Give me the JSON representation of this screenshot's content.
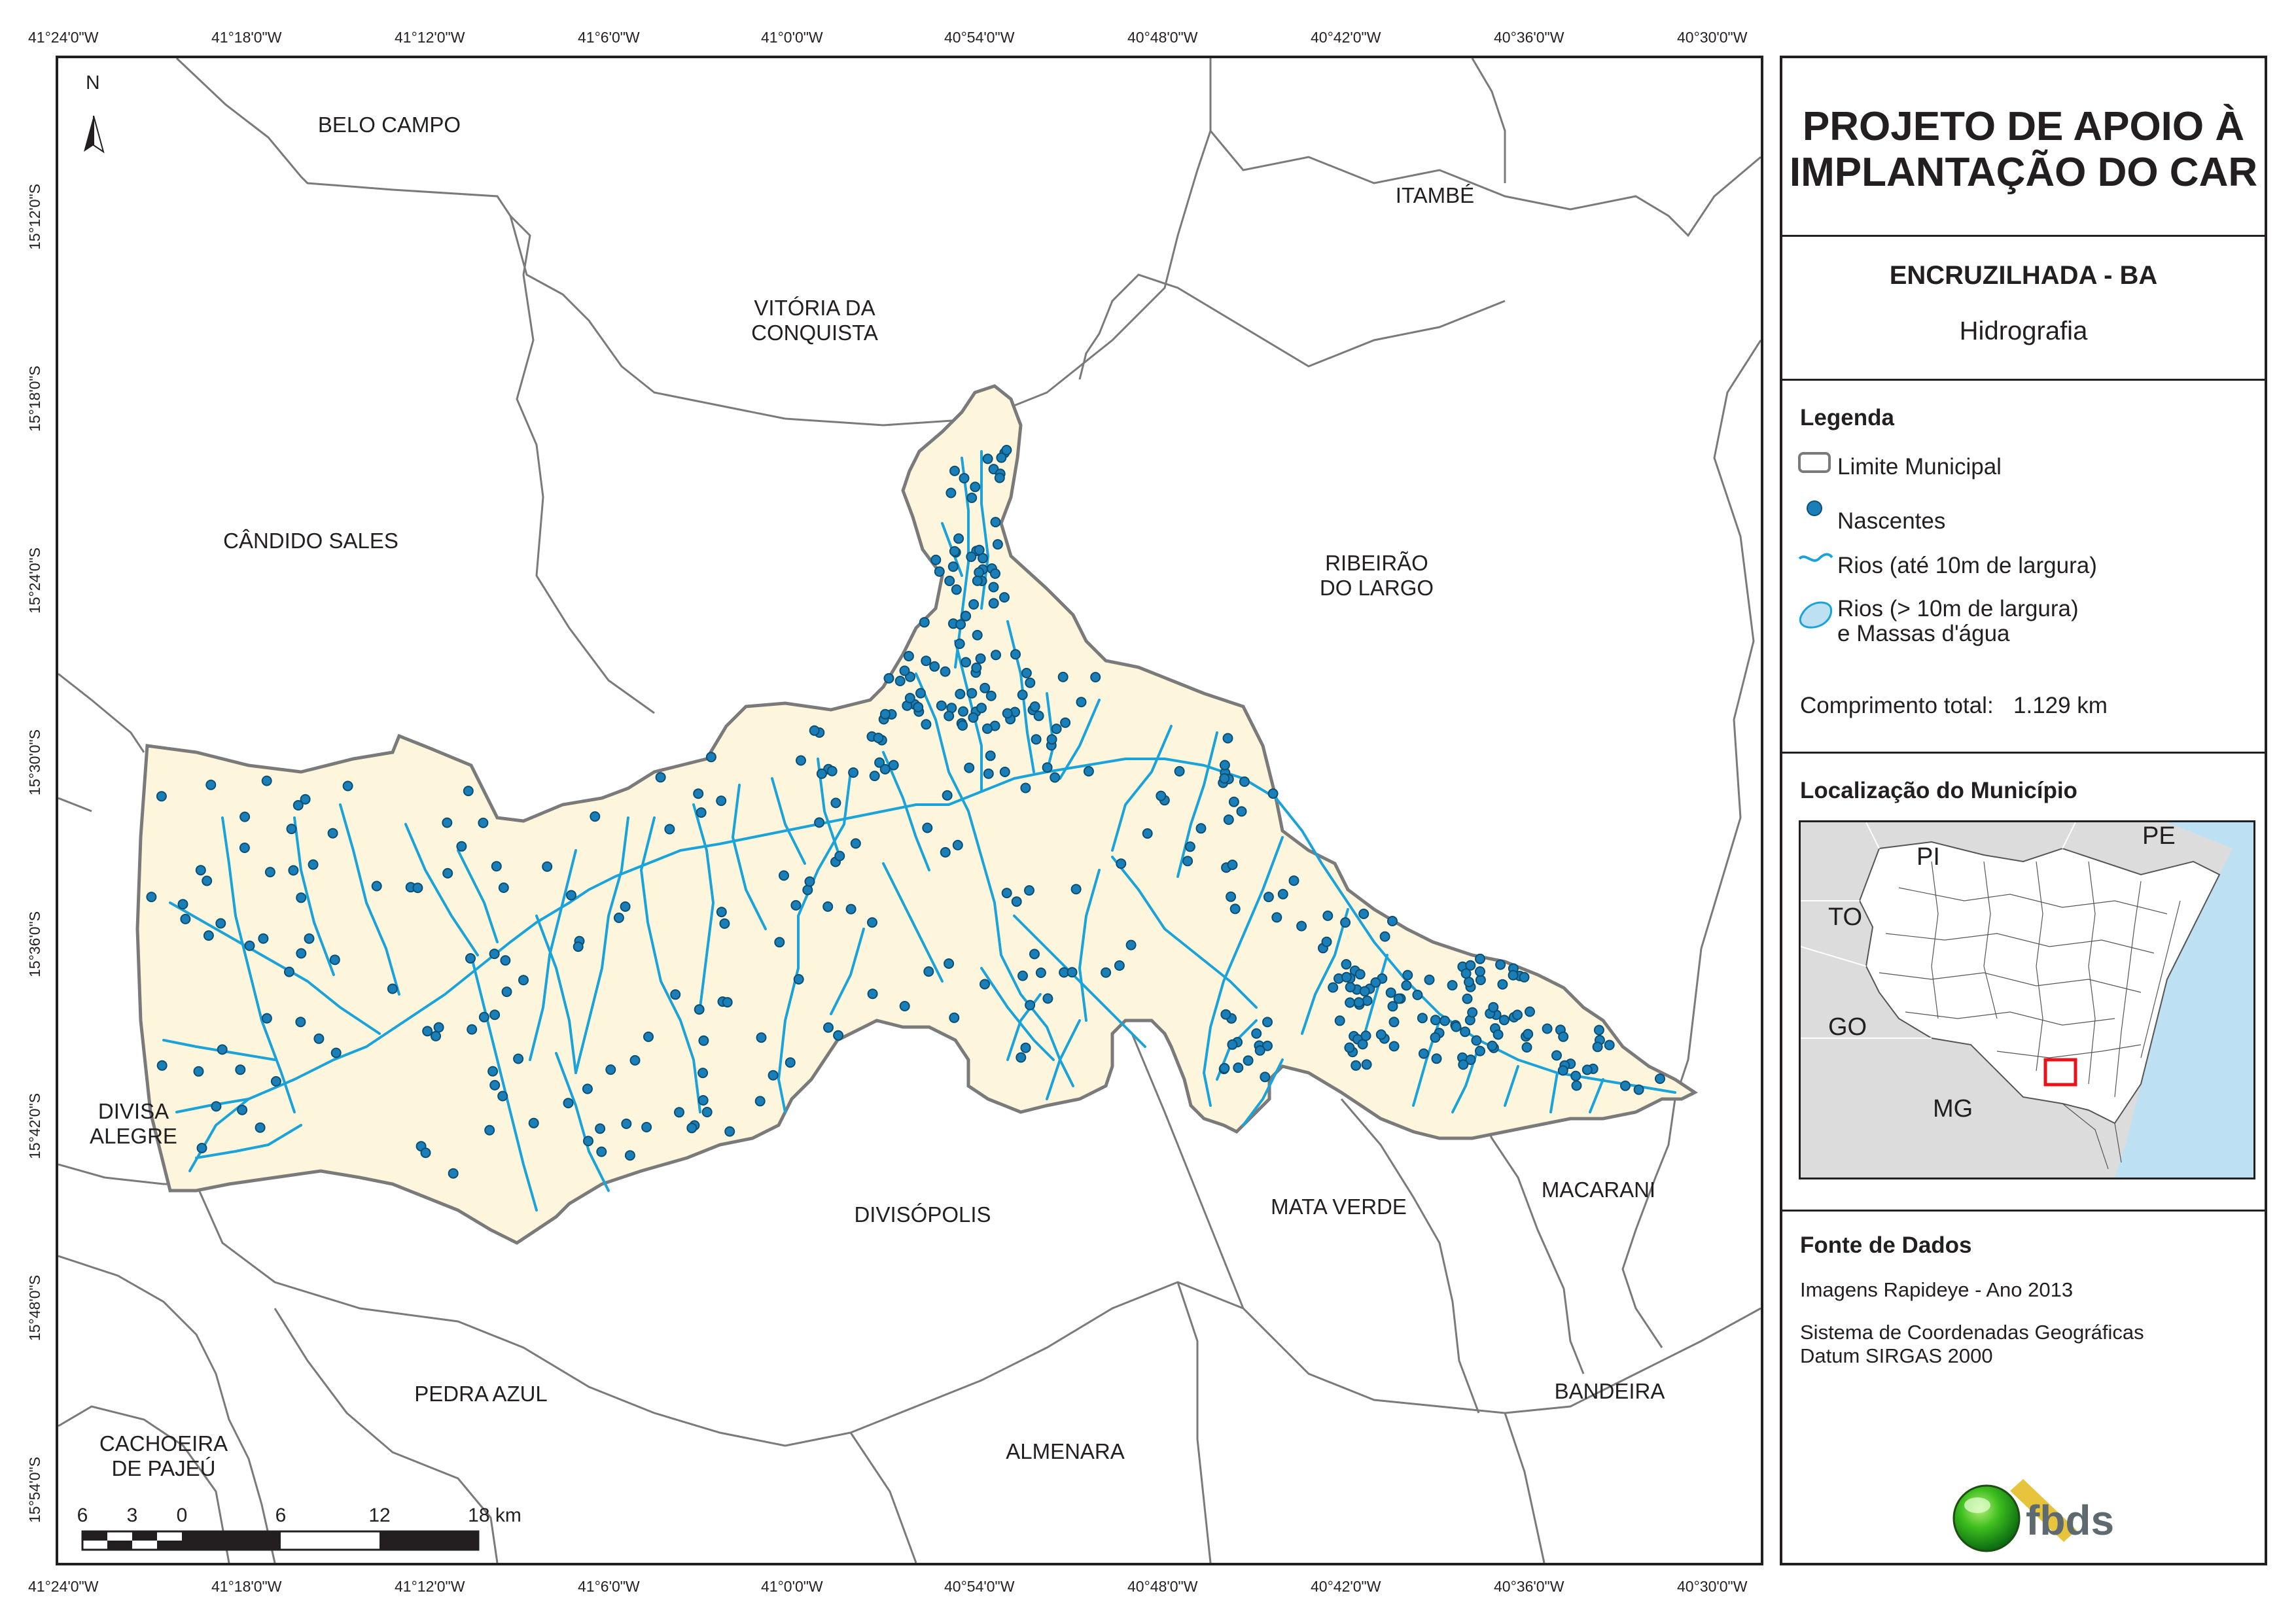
{
  "coords": {
    "top": [
      "41°24'0\"W",
      "41°18'0\"W",
      "41°12'0\"W",
      "41°6'0\"W",
      "41°0'0\"W",
      "40°54'0\"W",
      "40°48'0\"W",
      "40°42'0\"W",
      "40°36'0\"W",
      "40°30'0\"W"
    ],
    "bottom": [
      "41°24'0\"W",
      "41°18'0\"W",
      "41°12'0\"W",
      "41°6'0\"W",
      "41°0'0\"W",
      "40°54'0\"W",
      "40°48'0\"W",
      "40°42'0\"W",
      "40°36'0\"W",
      "40°30'0\"W"
    ],
    "left": [
      "15°12'0\"S",
      "15°18'0\"S",
      "15°24'0\"S",
      "15°30'0\"S",
      "15°36'0\"S",
      "15°42'0\"S",
      "15°48'0\"S",
      "15°54'0\"S"
    ]
  },
  "north_label": "N",
  "municipalities": {
    "belo_campo": "BELO CAMPO",
    "itambe": "ITAMBÉ",
    "vitoria_1": "VITÓRIA DA",
    "vitoria_2": "CONQUISTA",
    "candido": "CÂNDIDO SALES",
    "ribeirao_1": "RIBEIRÃO",
    "ribeirao_2": "DO LARGO",
    "divisa_1": "DIVISA",
    "divisa_2": "ALEGRE",
    "divisopolis": "DIVISÓPOLIS",
    "mata_verde": "MATA VERDE",
    "macarani": "MACARANI",
    "pedra_azul": "PEDRA AZUL",
    "bandeira": "BANDEIRA",
    "almenara": "ALMENARA",
    "cachoeira_1": "CACHOEIRA",
    "cachoeira_2": "DE PAJEÚ"
  },
  "scale_bar": {
    "labels": [
      "6",
      "3",
      "0",
      "6",
      "12",
      "18 km"
    ]
  },
  "panel": {
    "title_line1": "PROJETO DE APOIO À",
    "title_line2": "IMPLANTAÇÃO DO CAR",
    "municipio": "ENCRUZILHADA - BA",
    "tema": "Hidrografia",
    "legenda_title": "Legenda",
    "legend": {
      "limite": "Limite Municipal",
      "nascentes": "Nascentes",
      "rios_small": "Rios (até 10m de largura)",
      "rios_big_1": "Rios (> 10m de largura)",
      "rios_big_2": "e Massas d'água"
    },
    "comprimento_label": "Comprimento total:",
    "comprimento_value": "1.129 km",
    "localizacao_title": "Localização do Município",
    "states": {
      "pi": "PI",
      "pe": "PE",
      "to": "TO",
      "go": "GO",
      "mg": "MG"
    },
    "fonte_title": "Fonte de Dados",
    "fonte_1": "Imagens Rapideye - Ano 2013",
    "sistema_1": "Sistema de Coordenadas Geográficas",
    "sistema_2": "Datum SIRGAS 2000",
    "logo_text": "fbds"
  },
  "colors": {
    "municipality_fill": "#fdf5dc",
    "river": "#1aa3d9",
    "spring": "#1a7fb8",
    "ocean": "#bde0f3",
    "land_grey": "#dcdcdc"
  }
}
